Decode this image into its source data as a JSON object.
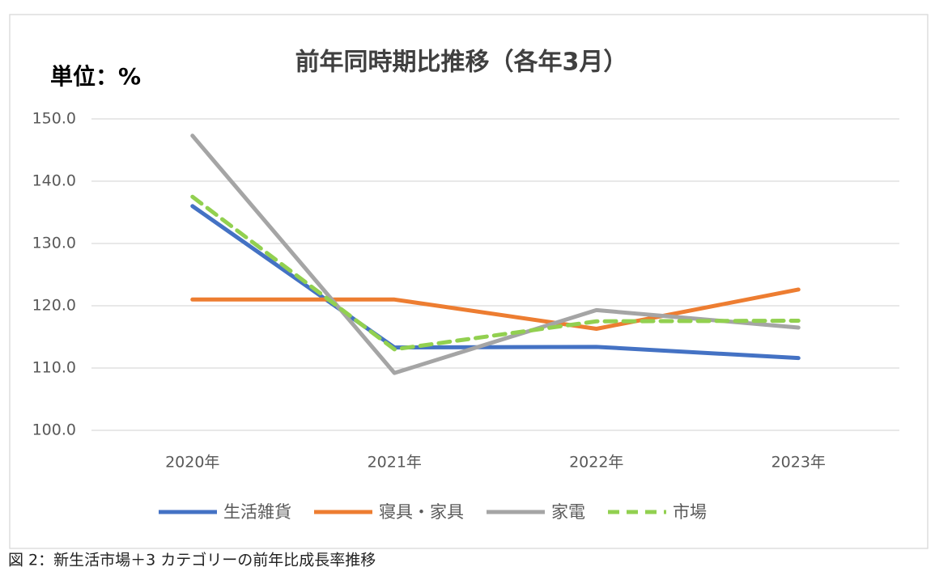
{
  "chart_data": {
    "type": "line",
    "title": "前年同時期比推移（各年3月）",
    "unit_label": "単位：%",
    "categories": [
      "2020年",
      "2021年",
      "2022年",
      "2023年"
    ],
    "series": [
      {
        "name": "生活雑貨",
        "color": "#4472c4",
        "line_style": "solid",
        "values": [
          136.0,
          113.3,
          113.4,
          111.6
        ]
      },
      {
        "name": "寝具・家具",
        "color": "#ed7d31",
        "line_style": "solid",
        "values": [
          121.0,
          121.0,
          116.3,
          122.6
        ]
      },
      {
        "name": "家電",
        "color": "#a5a5a5",
        "line_style": "solid",
        "values": [
          147.3,
          109.2,
          119.3,
          116.5
        ]
      },
      {
        "name": "市場",
        "color": "#92d050",
        "line_style": "dashed",
        "values": [
          137.5,
          113.0,
          117.5,
          117.6
        ]
      }
    ],
    "ylim": [
      100,
      150
    ],
    "yticks": [
      {
        "value": 100,
        "label": "100.0"
      },
      {
        "value": 110,
        "label": "110.0"
      },
      {
        "value": 120,
        "label": "120.0"
      },
      {
        "value": 130,
        "label": "130.0"
      },
      {
        "value": 140,
        "label": "140.0"
      },
      {
        "value": 150,
        "label": "150.0"
      }
    ],
    "grid": true,
    "legend": "bottom"
  },
  "caption": "図 2：新生活市場＋3 カテゴリーの前年比成長率推移"
}
